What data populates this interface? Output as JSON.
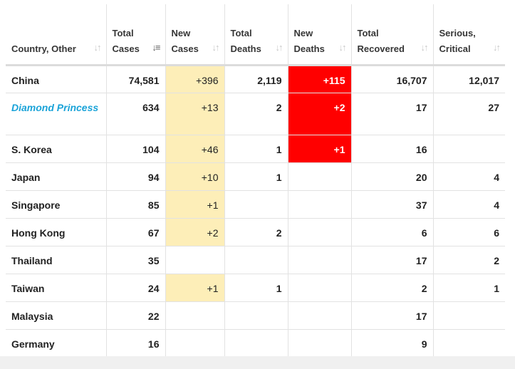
{
  "columns": [
    {
      "label": "Country, Other",
      "sort_icon": "sort-icon",
      "active": false
    },
    {
      "label": "Total Cases",
      "sort_icon": "sort-desc-icon",
      "active": true
    },
    {
      "label": "New Cases",
      "sort_icon": "sort-icon",
      "active": false
    },
    {
      "label": "Total Deaths",
      "sort_icon": "sort-icon",
      "active": false
    },
    {
      "label": "New Deaths",
      "sort_icon": "sort-icon",
      "active": false
    },
    {
      "label": "Total Recovered",
      "sort_icon": "sort-icon",
      "active": false
    },
    {
      "label": "Serious, Critical",
      "sort_icon": "sort-icon",
      "active": false
    }
  ],
  "rows": [
    {
      "country": "China",
      "link": false,
      "total_cases": "74,581",
      "new_cases": "+396",
      "total_deaths": "2,119",
      "new_deaths": "+115",
      "total_recovered": "16,707",
      "serious_critical": "12,017"
    },
    {
      "country": "Diamond Princess",
      "link": true,
      "total_cases": "634",
      "new_cases": "+13",
      "total_deaths": "2",
      "new_deaths": "+2",
      "total_recovered": "17",
      "serious_critical": "27"
    },
    {
      "country": "S. Korea",
      "link": false,
      "total_cases": "104",
      "new_cases": "+46",
      "total_deaths": "1",
      "new_deaths": "+1",
      "total_recovered": "16",
      "serious_critical": ""
    },
    {
      "country": "Japan",
      "link": false,
      "total_cases": "94",
      "new_cases": "+10",
      "total_deaths": "1",
      "new_deaths": "",
      "total_recovered": "20",
      "serious_critical": "4"
    },
    {
      "country": "Singapore",
      "link": false,
      "total_cases": "85",
      "new_cases": "+1",
      "total_deaths": "",
      "new_deaths": "",
      "total_recovered": "37",
      "serious_critical": "4"
    },
    {
      "country": "Hong Kong",
      "link": false,
      "total_cases": "67",
      "new_cases": "+2",
      "total_deaths": "2",
      "new_deaths": "",
      "total_recovered": "6",
      "serious_critical": "6"
    },
    {
      "country": "Thailand",
      "link": false,
      "total_cases": "35",
      "new_cases": "",
      "total_deaths": "",
      "new_deaths": "",
      "total_recovered": "17",
      "serious_critical": "2"
    },
    {
      "country": "Taiwan",
      "link": false,
      "total_cases": "24",
      "new_cases": "+1",
      "total_deaths": "1",
      "new_deaths": "",
      "total_recovered": "2",
      "serious_critical": "1"
    },
    {
      "country": "Malaysia",
      "link": false,
      "total_cases": "22",
      "new_cases": "",
      "total_deaths": "",
      "new_deaths": "",
      "total_recovered": "17",
      "serious_critical": ""
    },
    {
      "country": "Germany",
      "link": false,
      "total_cases": "16",
      "new_cases": "",
      "total_deaths": "",
      "new_deaths": "",
      "total_recovered": "9",
      "serious_critical": ""
    }
  ],
  "colors": {
    "new_cases_highlight": "#fdeeb8",
    "new_deaths_highlight": "#ff0000",
    "country_link": "#1aa3d8",
    "grid_line": "#e2e2e2"
  },
  "icons": {
    "sort": "sort-icon",
    "sort_active": "sort-desc-icon"
  }
}
